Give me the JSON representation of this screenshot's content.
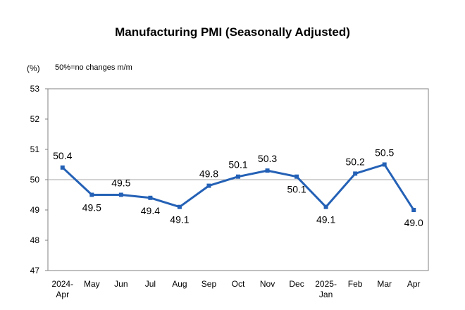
{
  "chart_data": {
    "type": "line",
    "title": "Manufacturing PMI (Seasonally Adjusted)",
    "unit_label": "(%)",
    "note": "50%=no changes m/m",
    "categories": [
      [
        "2024-",
        "Apr"
      ],
      [
        "May"
      ],
      [
        "Jun"
      ],
      [
        "Jul"
      ],
      [
        "Aug"
      ],
      [
        "Sep"
      ],
      [
        "Oct"
      ],
      [
        "Nov"
      ],
      [
        "Dec"
      ],
      [
        "2025-",
        "Jan"
      ],
      [
        "Feb"
      ],
      [
        "Mar"
      ],
      [
        "Apr"
      ]
    ],
    "series": [
      {
        "values": [
          50.4,
          49.5,
          49.5,
          49.4,
          49.1,
          49.8,
          50.1,
          50.3,
          50.1,
          49.1,
          50.2,
          50.5,
          49.0
        ]
      }
    ],
    "data_labels": [
      "50.4",
      "49.5",
      "49.5",
      "49.4",
      "49.1",
      "49.8",
      "50.1",
      "50.3",
      "50.1",
      "49.1",
      "50.2",
      "50.5",
      "49.0"
    ],
    "ylim": [
      47,
      53
    ],
    "yticks": [
      "47",
      "48",
      "49",
      "50",
      "51",
      "52",
      "53"
    ],
    "reference_line": 50,
    "grid": false,
    "colors": {
      "line": "#2461b6",
      "reference": "#a6a6a6",
      "frame": "#808080"
    }
  }
}
